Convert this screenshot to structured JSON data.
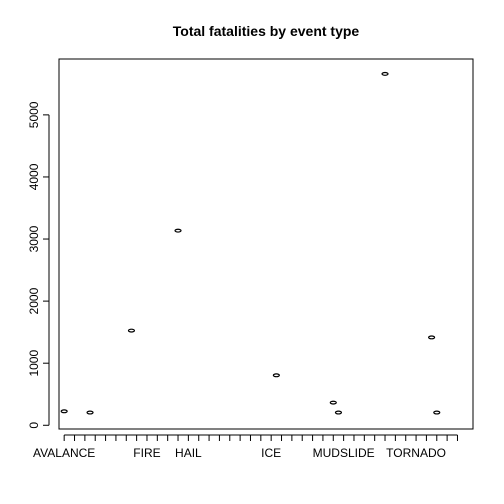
{
  "chart_data": {
    "type": "scatter",
    "title": "Total fatalities by event type",
    "xlabel": "",
    "ylabel": "",
    "ylim": [
      -60,
      5900
    ],
    "yticks": [
      0,
      1000,
      2000,
      3000,
      4000,
      5000
    ],
    "xlim": [
      -0.5,
      39.5
    ],
    "x_tick_count": 39,
    "x_tick_labels": [
      {
        "at": 0,
        "text": "AVALANCE"
      },
      {
        "at": 8,
        "text": "FIRE"
      },
      {
        "at": 12,
        "text": "HAIL"
      },
      {
        "at": 20,
        "text": "ICE"
      },
      {
        "at": 27,
        "text": "MUDSLIDE"
      },
      {
        "at": 34,
        "text": "TORNADO"
      }
    ],
    "grid": false,
    "legend": "none",
    "points": [
      {
        "x": 0,
        "y": 225
      },
      {
        "x": 2.5,
        "y": 205
      },
      {
        "x": 6.5,
        "y": 1525
      },
      {
        "x": 11,
        "y": 3135
      },
      {
        "x": 20.5,
        "y": 805
      },
      {
        "x": 26,
        "y": 365
      },
      {
        "x": 26.5,
        "y": 205
      },
      {
        "x": 31,
        "y": 5660
      },
      {
        "x": 35.5,
        "y": 1415
      },
      {
        "x": 36,
        "y": 205
      }
    ]
  }
}
